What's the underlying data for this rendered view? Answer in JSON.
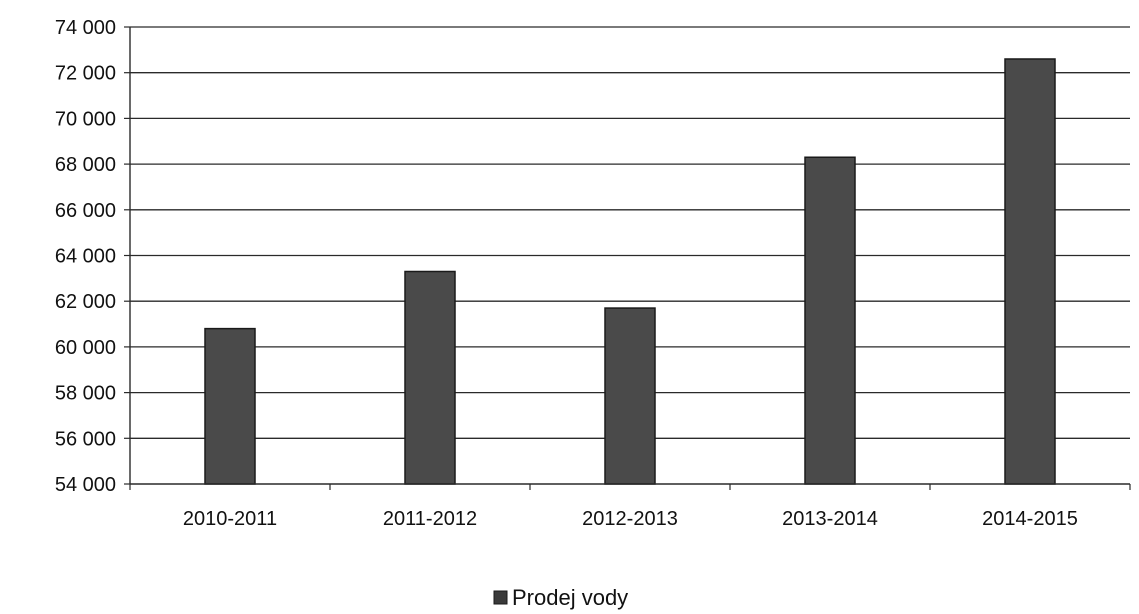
{
  "chart_data": {
    "type": "bar",
    "categories": [
      "2010-2011",
      "2011-2012",
      "2012-2013",
      "2013-2014",
      "2014-2015"
    ],
    "series": [
      {
        "name": "Prodej vody",
        "values": [
          60800,
          63300,
          61700,
          68300,
          72600
        ]
      }
    ],
    "ylim": [
      54000,
      74000
    ],
    "y_ticks": [
      54000,
      56000,
      58000,
      60000,
      62000,
      64000,
      66000,
      68000,
      70000,
      72000,
      74000
    ],
    "y_tick_labels": [
      "54 000",
      "56 000",
      "58 000",
      "60 000",
      "62 000",
      "64 000",
      "66 000",
      "68 000",
      "70 000",
      "72 000",
      "74 000"
    ],
    "grid": true,
    "legend_position": "bottom",
    "colors": {
      "bar": "#4a4a4a",
      "bar_edge": "#1a1a1a",
      "grid": "#2a2a2a",
      "legend_swatch": "#3a3a3a"
    }
  }
}
